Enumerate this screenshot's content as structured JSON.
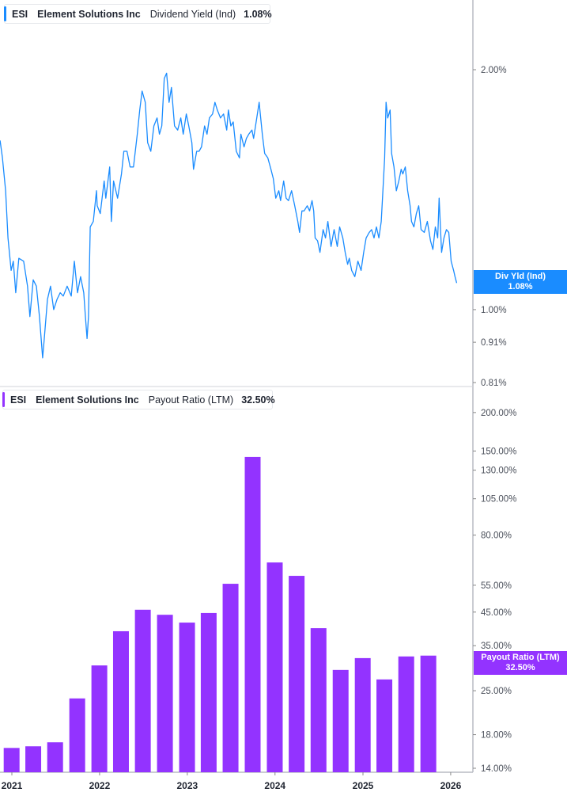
{
  "colors": {
    "yield": "#1a8cff",
    "payout": "#9333ff",
    "axis": "#b8bcc4"
  },
  "legend_top": {
    "ticker": "ESI",
    "company": "Element Solutions Inc",
    "metric": "Dividend Yield (Ind)",
    "value": "1.08%"
  },
  "legend_bottom": {
    "ticker": "ESI",
    "company": "Element Solutions Inc",
    "metric": "Payout Ratio (LTM)",
    "value": "32.50%"
  },
  "tag_top": {
    "label": "Div Yld (Ind)",
    "value": "1.08%"
  },
  "tag_bottom": {
    "label": "Payout Ratio (LTM)",
    "value": "32.50%"
  },
  "x_ticks": [
    "2021",
    "2022",
    "2023",
    "2024",
    "2025",
    "2026"
  ],
  "chart_data": [
    {
      "type": "line",
      "series_label": "Dividend Yield (Ind)",
      "y_scale": "log",
      "ylim": [
        0.81,
        2.0
      ],
      "y_ticks": [
        {
          "v": 2.0,
          "label": "2.00%"
        },
        {
          "v": 1.0,
          "label": "1.00%"
        },
        {
          "v": 0.91,
          "label": "0.91%"
        },
        {
          "v": 0.81,
          "label": "0.81%"
        }
      ],
      "points": [
        [
          "2020-11-13",
          1.63
        ],
        [
          "2020-11-23",
          1.55
        ],
        [
          "2020-12-06",
          1.41
        ],
        [
          "2020-12-16",
          1.23
        ],
        [
          "2020-12-29",
          1.12
        ],
        [
          "2021-01-07",
          1.15
        ],
        [
          "2021-01-17",
          1.05
        ],
        [
          "2021-01-30",
          1.16
        ],
        [
          "2021-02-19",
          1.15
        ],
        [
          "2021-03-07",
          1.07
        ],
        [
          "2021-03-17",
          0.98
        ],
        [
          "2021-03-31",
          1.09
        ],
        [
          "2021-04-13",
          1.07
        ],
        [
          "2021-04-26",
          0.98
        ],
        [
          "2021-05-09",
          0.87
        ],
        [
          "2021-05-16",
          0.92
        ],
        [
          "2021-05-29",
          1.03
        ],
        [
          "2021-06-11",
          1.07
        ],
        [
          "2021-06-24",
          1.0
        ],
        [
          "2021-07-08",
          1.03
        ],
        [
          "2021-07-21",
          1.05
        ],
        [
          "2021-08-03",
          1.04
        ],
        [
          "2021-08-19",
          1.07
        ],
        [
          "2021-09-05",
          1.04
        ],
        [
          "2021-09-18",
          1.15
        ],
        [
          "2021-10-01",
          1.05
        ],
        [
          "2021-10-14",
          1.1
        ],
        [
          "2021-10-27",
          1.05
        ],
        [
          "2021-11-03",
          0.98
        ],
        [
          "2021-11-10",
          0.92
        ],
        [
          "2021-11-16",
          0.98
        ],
        [
          "2021-11-23",
          1.27
        ],
        [
          "2021-12-06",
          1.29
        ],
        [
          "2021-12-19",
          1.41
        ],
        [
          "2021-12-22",
          1.35
        ],
        [
          "2022-01-04",
          1.32
        ],
        [
          "2022-01-20",
          1.45
        ],
        [
          "2022-01-27",
          1.38
        ],
        [
          "2022-02-12",
          1.51
        ],
        [
          "2022-02-19",
          1.29
        ],
        [
          "2022-02-28",
          1.45
        ],
        [
          "2022-03-17",
          1.38
        ],
        [
          "2022-04-02",
          1.48
        ],
        [
          "2022-04-12",
          1.58
        ],
        [
          "2022-04-25",
          1.58
        ],
        [
          "2022-05-08",
          1.51
        ],
        [
          "2022-05-22",
          1.51
        ],
        [
          "2022-06-07",
          1.66
        ],
        [
          "2022-06-17",
          1.78
        ],
        [
          "2022-06-27",
          1.88
        ],
        [
          "2022-07-10",
          1.82
        ],
        [
          "2022-07-20",
          1.62
        ],
        [
          "2022-08-02",
          1.58
        ],
        [
          "2022-08-15",
          1.7
        ],
        [
          "2022-08-28",
          1.74
        ],
        [
          "2022-09-07",
          1.66
        ],
        [
          "2022-09-17",
          1.7
        ],
        [
          "2022-09-27",
          1.95
        ],
        [
          "2022-10-07",
          1.98
        ],
        [
          "2022-10-17",
          1.82
        ],
        [
          "2022-10-27",
          1.9
        ],
        [
          "2022-11-09",
          1.7
        ],
        [
          "2022-11-22",
          1.68
        ],
        [
          "2022-12-05",
          1.74
        ],
        [
          "2022-12-15",
          1.66
        ],
        [
          "2022-12-28",
          1.76
        ],
        [
          "2023-01-07",
          1.7
        ],
        [
          "2023-01-20",
          1.62
        ],
        [
          "2023-01-27",
          1.5
        ],
        [
          "2023-02-09",
          1.58
        ],
        [
          "2023-02-19",
          1.58
        ],
        [
          "2023-03-01",
          1.6
        ],
        [
          "2023-03-14",
          1.7
        ],
        [
          "2023-03-24",
          1.66
        ],
        [
          "2023-04-03",
          1.74
        ],
        [
          "2023-04-16",
          1.76
        ],
        [
          "2023-04-26",
          1.82
        ],
        [
          "2023-05-06",
          1.78
        ],
        [
          "2023-05-19",
          1.74
        ],
        [
          "2023-06-01",
          1.76
        ],
        [
          "2023-06-14",
          1.68
        ],
        [
          "2023-06-21",
          1.78
        ],
        [
          "2023-07-01",
          1.7
        ],
        [
          "2023-07-11",
          1.72
        ],
        [
          "2023-07-24",
          1.58
        ],
        [
          "2023-08-06",
          1.55
        ],
        [
          "2023-08-12",
          1.66
        ],
        [
          "2023-08-25",
          1.6
        ],
        [
          "2023-09-04",
          1.64
        ],
        [
          "2023-09-14",
          1.66
        ],
        [
          "2023-09-27",
          1.68
        ],
        [
          "2023-10-04",
          1.64
        ],
        [
          "2023-10-17",
          1.74
        ],
        [
          "2023-10-27",
          1.82
        ],
        [
          "2023-11-09",
          1.66
        ],
        [
          "2023-11-19",
          1.57
        ],
        [
          "2023-12-02",
          1.55
        ],
        [
          "2023-12-15",
          1.5
        ],
        [
          "2023-12-25",
          1.46
        ],
        [
          "2024-01-04",
          1.38
        ],
        [
          "2024-01-17",
          1.41
        ],
        [
          "2024-01-24",
          1.37
        ],
        [
          "2024-02-06",
          1.45
        ],
        [
          "2024-02-16",
          1.38
        ],
        [
          "2024-02-26",
          1.37
        ],
        [
          "2024-03-10",
          1.41
        ],
        [
          "2024-03-23",
          1.35
        ],
        [
          "2024-04-05",
          1.29
        ],
        [
          "2024-04-12",
          1.25
        ],
        [
          "2024-04-22",
          1.33
        ],
        [
          "2024-05-01",
          1.33
        ],
        [
          "2024-05-14",
          1.35
        ],
        [
          "2024-05-24",
          1.33
        ],
        [
          "2024-06-03",
          1.37
        ],
        [
          "2024-06-10",
          1.33
        ],
        [
          "2024-06-16",
          1.23
        ],
        [
          "2024-06-26",
          1.22
        ],
        [
          "2024-07-06",
          1.18
        ],
        [
          "2024-07-19",
          1.26
        ],
        [
          "2024-07-29",
          1.23
        ],
        [
          "2024-08-08",
          1.29
        ],
        [
          "2024-08-21",
          1.2
        ],
        [
          "2024-09-03",
          1.26
        ],
        [
          "2024-09-16",
          1.2
        ],
        [
          "2024-09-26",
          1.27
        ],
        [
          "2024-10-09",
          1.23
        ],
        [
          "2024-10-19",
          1.18
        ],
        [
          "2024-10-29",
          1.14
        ],
        [
          "2024-11-05",
          1.16
        ],
        [
          "2024-11-15",
          1.12
        ],
        [
          "2024-11-28",
          1.1
        ],
        [
          "2024-12-11",
          1.15
        ],
        [
          "2024-12-24",
          1.12
        ],
        [
          "2025-01-04",
          1.18
        ],
        [
          "2025-01-14",
          1.23
        ],
        [
          "2025-01-27",
          1.25
        ],
        [
          "2025-02-06",
          1.26
        ],
        [
          "2025-02-16",
          1.23
        ],
        [
          "2025-02-26",
          1.27
        ],
        [
          "2025-03-08",
          1.23
        ],
        [
          "2025-03-18",
          1.29
        ],
        [
          "2025-03-25",
          1.41
        ],
        [
          "2025-04-01",
          1.55
        ],
        [
          "2025-04-07",
          1.82
        ],
        [
          "2025-04-14",
          1.74
        ],
        [
          "2025-04-24",
          1.78
        ],
        [
          "2025-04-30",
          1.57
        ],
        [
          "2025-05-10",
          1.51
        ],
        [
          "2025-05-20",
          1.41
        ],
        [
          "2025-05-30",
          1.45
        ],
        [
          "2025-06-09",
          1.5
        ],
        [
          "2025-06-16",
          1.48
        ],
        [
          "2025-06-26",
          1.51
        ],
        [
          "2025-07-06",
          1.41
        ],
        [
          "2025-07-16",
          1.35
        ],
        [
          "2025-07-22",
          1.29
        ],
        [
          "2025-08-01",
          1.27
        ],
        [
          "2025-08-11",
          1.32
        ],
        [
          "2025-08-21",
          1.35
        ],
        [
          "2025-08-31",
          1.26
        ],
        [
          "2025-09-13",
          1.25
        ],
        [
          "2025-09-26",
          1.29
        ],
        [
          "2025-10-09",
          1.22
        ],
        [
          "2025-10-19",
          1.19
        ],
        [
          "2025-10-29",
          1.27
        ],
        [
          "2025-11-08",
          1.23
        ],
        [
          "2025-11-14",
          1.38
        ],
        [
          "2025-11-24",
          1.18
        ],
        [
          "2025-12-04",
          1.23
        ],
        [
          "2025-12-14",
          1.26
        ],
        [
          "2025-12-24",
          1.25
        ],
        [
          "2026-01-03",
          1.15
        ],
        [
          "2026-01-13",
          1.12
        ],
        [
          "2026-01-19",
          1.1
        ],
        [
          "2026-01-26",
          1.08
        ]
      ]
    },
    {
      "type": "bar",
      "series_label": "Payout Ratio (LTM)",
      "y_scale": "log",
      "ylim": [
        14,
        200
      ],
      "y_ticks": [
        {
          "v": 200,
          "label": "200.00%"
        },
        {
          "v": 150,
          "label": "150.00%"
        },
        {
          "v": 130,
          "label": "130.00%"
        },
        {
          "v": 105,
          "label": "105.00%"
        },
        {
          "v": 80,
          "label": "80.00%"
        },
        {
          "v": 55,
          "label": "55.00%"
        },
        {
          "v": 45,
          "label": "45.00%"
        },
        {
          "v": 35,
          "label": "35.00%"
        },
        {
          "v": 25,
          "label": "25.00%"
        },
        {
          "v": 18,
          "label": "18.00%"
        },
        {
          "v": 14,
          "label": "14.00%"
        }
      ],
      "categories": [
        "2020-12-31",
        "2021-03-31",
        "2021-06-30",
        "2021-09-30",
        "2021-12-31",
        "2022-03-31",
        "2022-06-30",
        "2022-09-30",
        "2022-12-31",
        "2023-03-31",
        "2023-06-30",
        "2023-09-30",
        "2023-12-31",
        "2024-03-31",
        "2024-06-30",
        "2024-09-30",
        "2024-12-31",
        "2025-03-31",
        "2025-06-30",
        "2025-09-30"
      ],
      "values": [
        16.3,
        16.5,
        17.0,
        23.6,
        30.2,
        39.0,
        45.8,
        44.1,
        41.6,
        44.7,
        55.6,
        143.5,
        65.2,
        59.0,
        39.9,
        29.2,
        31.9,
        27.2,
        32.3,
        32.5
      ]
    }
  ]
}
